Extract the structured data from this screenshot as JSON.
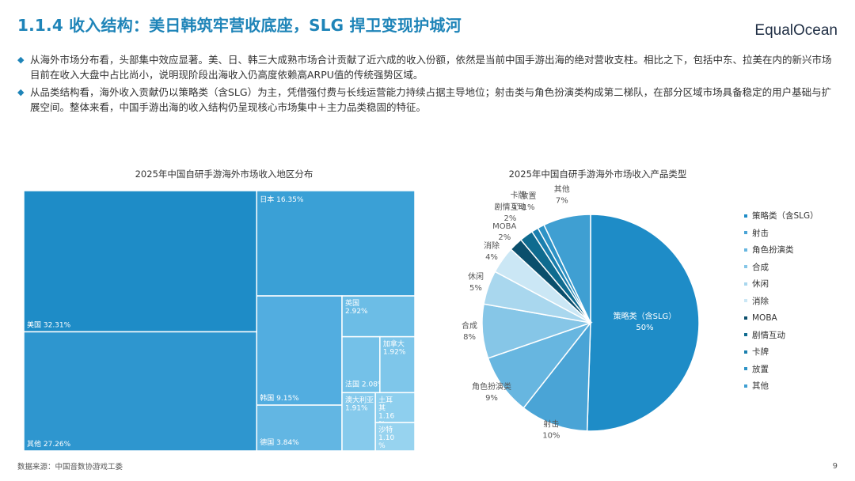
{
  "header": {
    "title": "1.1.4 收入结构：美日韩筑牢营收底座，SLG 捍卫变现护城河",
    "logo": "EqualOcean"
  },
  "bullets": [
    "从海外市场分布看，头部集中效应显著。美、日、韩三大成熟市场合计贡献了近六成的收入份额，依然是当前中国手游出海的绝对营收支柱。相比之下，包括中东、拉美在内的新兴市场目前在收入大盘中占比尚小，说明现阶段出海收入仍高度依赖高ARPU值的传统强势区域。",
    "从品类结构看，海外收入贡献仍以策略类（含SLG）为主，凭借强付费与长线运营能力持续占据主导地位；射击类与角色扮演类构成第二梯队，在部分区域市场具备稳定的用户基础与扩展空间。整体来看，中国手游出海的收入结构仍呈现核心市场集中＋主力品类稳固的特征。"
  ],
  "footer": {
    "source": "数据来源：中国音数协游戏工委",
    "page": "9"
  },
  "colors": {
    "accent": "#1e84b8"
  },
  "chart_data": [
    {
      "type": "treemap",
      "title": "2025年中国自研手游海外市场收入地区分布",
      "nodes": [
        {
          "name": "美国",
          "label": "美国 32.31%",
          "value": 32.31
        },
        {
          "name": "其他",
          "label": "其他 27.26%",
          "value": 27.26
        },
        {
          "name": "日本",
          "label": "日本 16.35%",
          "value": 16.35
        },
        {
          "name": "韩国",
          "label": "韩国 9.15%",
          "value": 9.15
        },
        {
          "name": "德国",
          "label": "德国 3.84%",
          "value": 3.84
        },
        {
          "name": "英国",
          "label": "英国\n2.92%",
          "value": 2.92
        },
        {
          "name": "法国",
          "label": "法国 2.08%",
          "value": 2.08
        },
        {
          "name": "澳大利亚",
          "label": "澳大利亚\n1.91%",
          "value": 1.91
        },
        {
          "name": "加拿大",
          "label": "加拿大\n1.92%",
          "value": 1.92
        },
        {
          "name": "土耳其",
          "label": "土耳\n其\n1.16\n%",
          "value": 1.16
        },
        {
          "name": "沙特",
          "label": "沙特\n1.10\n%",
          "value": 1.1
        }
      ]
    },
    {
      "type": "pie",
      "title": "2025年中国自研手游海外市场收入产品类型",
      "slices": [
        {
          "name": "策略类（含SLG）",
          "value": 50,
          "label": "策略类（含SLG）\n50%",
          "color": "#1e8cc7"
        },
        {
          "name": "射击",
          "value": 10,
          "label": "射击\n10%",
          "color": "#4aa4d6"
        },
        {
          "name": "角色扮演类",
          "value": 9,
          "label": "角色扮演类\n9%",
          "color": "#67b6e0"
        },
        {
          "name": "合成",
          "value": 8,
          "label": "合成\n8%",
          "color": "#86c6e7"
        },
        {
          "name": "休闲",
          "value": 5,
          "label": "休闲\n5%",
          "color": "#a9d7ee"
        },
        {
          "name": "消除",
          "value": 4,
          "label": "消除\n4%",
          "color": "#cbe7f5"
        },
        {
          "name": "MOBA",
          "value": 2,
          "label": "MOBA\n2%",
          "color": "#0b4f6c"
        },
        {
          "name": "剧情互动",
          "value": 2,
          "label": "剧情互动\n2%",
          "color": "#0f6b8f"
        },
        {
          "name": "卡牌",
          "value": 1,
          "label": "卡牌\n1%",
          "color": "#1a7fae"
        },
        {
          "name": "放置",
          "value": 1,
          "label": "放置\n1%",
          "color": "#2e93c6"
        },
        {
          "name": "其他",
          "value": 7,
          "label": "其他\n7%",
          "color": "#3f9fd2"
        }
      ]
    }
  ]
}
